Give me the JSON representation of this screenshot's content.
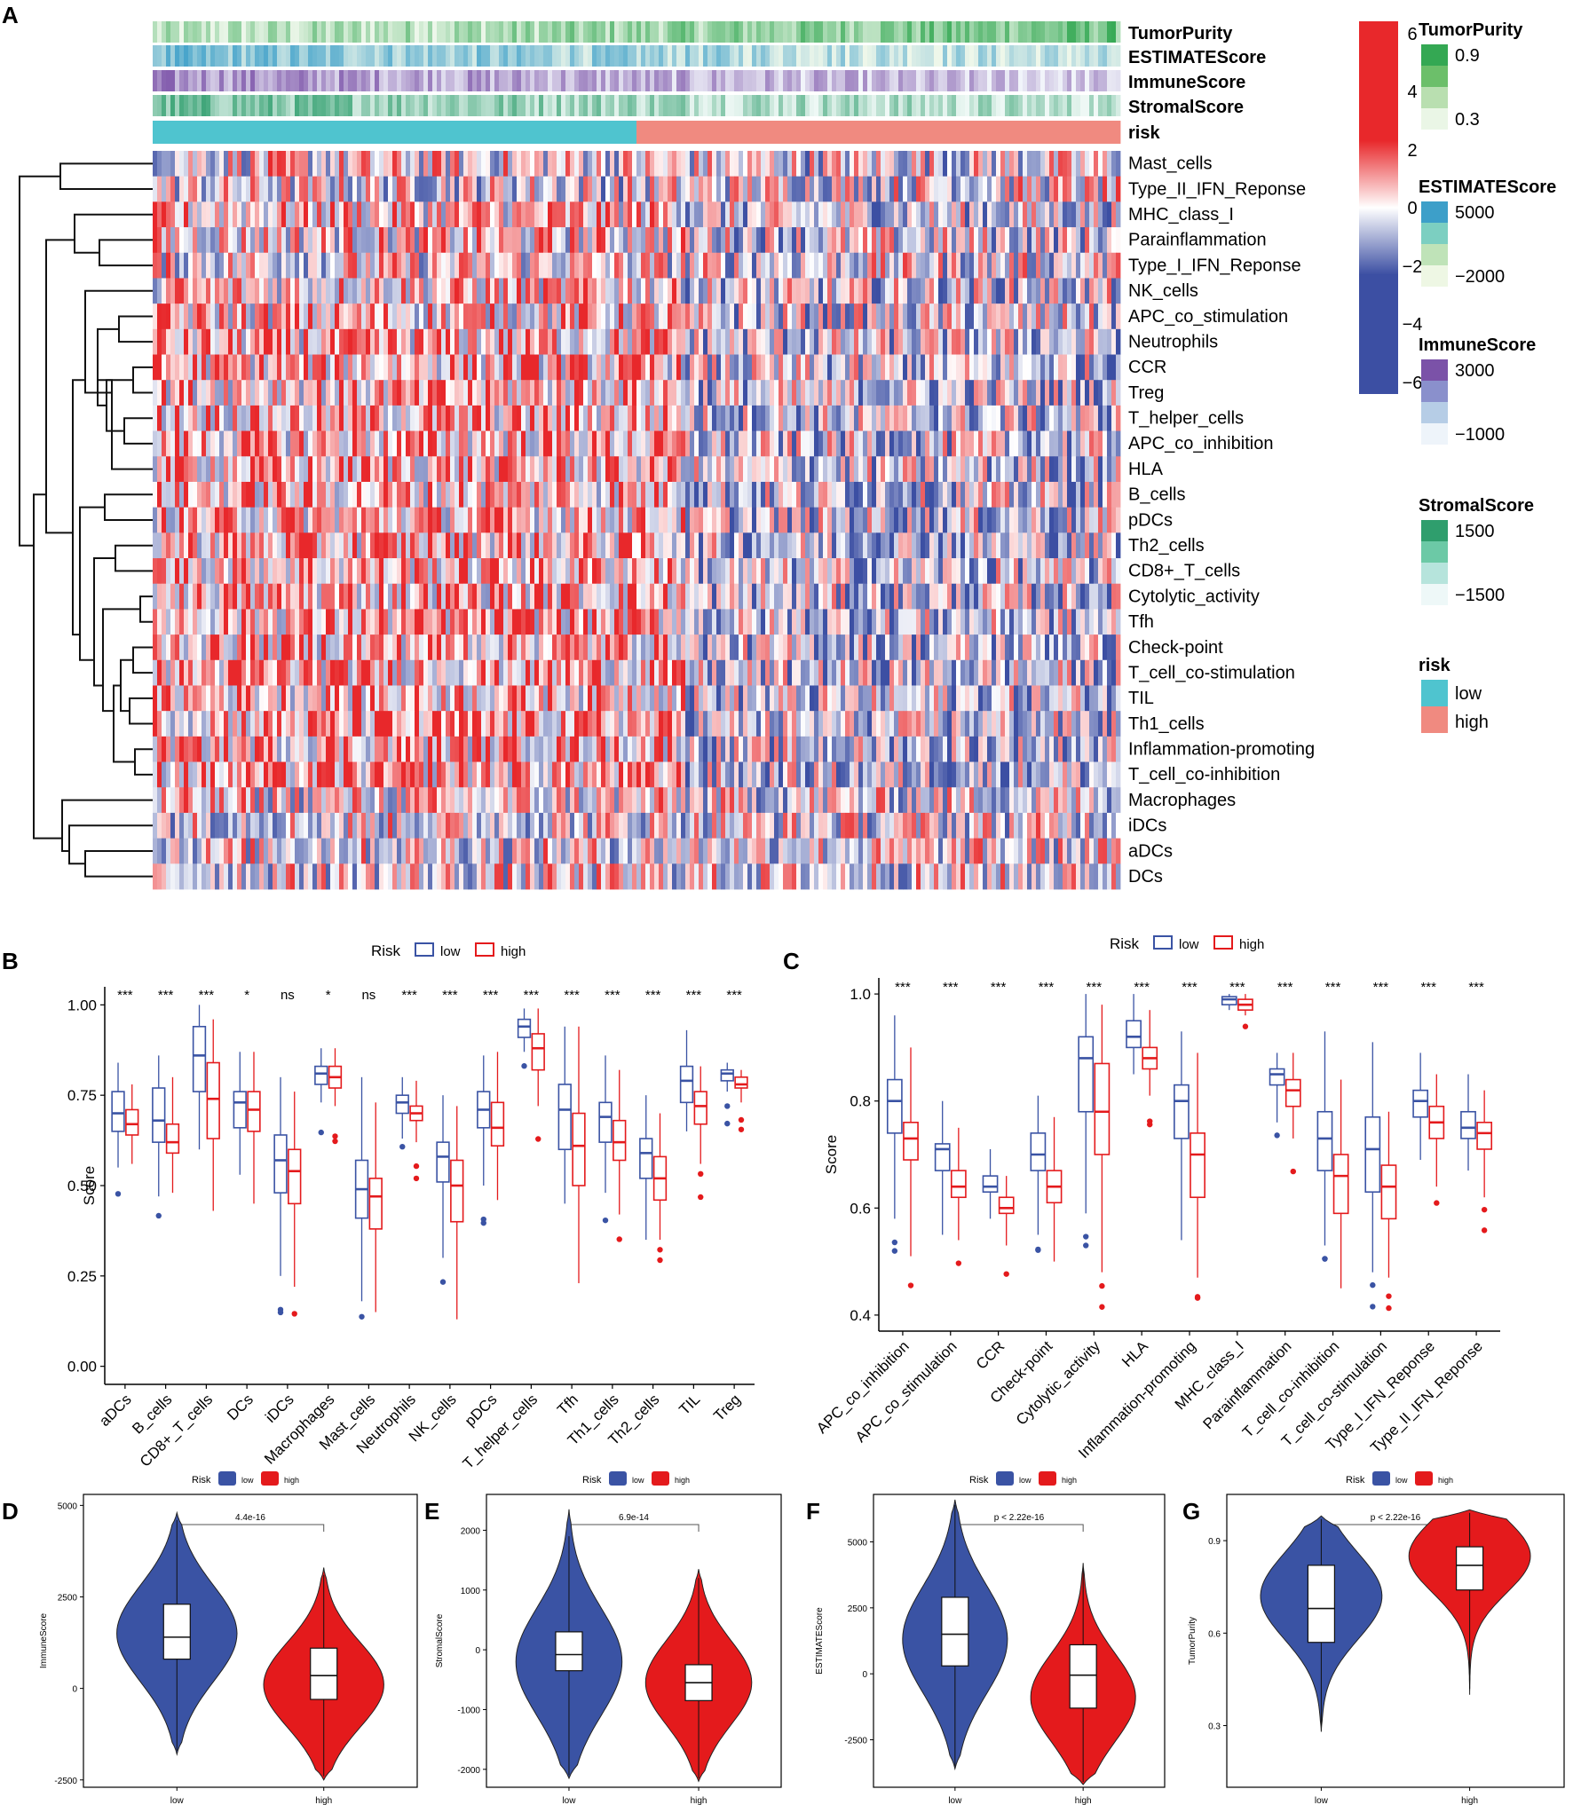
{
  "colors": {
    "low_blue": "#3a53a4",
    "high_red": "#e41a1c",
    "teal": "#4fc4cf",
    "salmon": "#f08a80",
    "heat_high": "#e8282b",
    "heat_low": "#3c4fa3"
  },
  "panels": {
    "A": "A",
    "B": "B",
    "C": "C",
    "D": "D",
    "E": "E",
    "F": "F",
    "G": "G"
  },
  "heatmap": {
    "annotation_rows": [
      "TumorPurity",
      "ESTIMATEScore",
      "ImmuneScore",
      "StromalScore",
      "risk"
    ],
    "rows": [
      "Mast_cells",
      "Type_II_IFN_Reponse",
      "MHC_class_I",
      "Parainflammation",
      "Type_I_IFN_Reponse",
      "NK_cells",
      "APC_co_stimulation",
      "Neutrophils",
      "CCR",
      "Treg",
      "T_helper_cells",
      "APC_co_inhibition",
      "HLA",
      "B_cells",
      "pDCs",
      "Th2_cells",
      "CD8+_T_cells",
      "Cytolytic_activity",
      "Tfh",
      "Check-point",
      "T_cell_co-stimulation",
      "TIL",
      "Th1_cells",
      "Inflammation-promoting",
      "T_cell_co-inhibition",
      "Macrophages",
      "iDCs",
      "aDCs",
      "DCs"
    ],
    "color_scale_ticks": [
      "6",
      "4",
      "2",
      "0",
      "−2",
      "−4",
      "−6"
    ],
    "legends": [
      {
        "title": "TumorPurity",
        "labels": [
          "0.9",
          "0.3"
        ]
      },
      {
        "title": "ESTIMATEScore",
        "labels": [
          "5000",
          "−2000"
        ]
      },
      {
        "title": "ImmuneScore",
        "labels": [
          "3000",
          "−1000"
        ]
      },
      {
        "title": "StromalScore",
        "labels": [
          "1500",
          "−1500"
        ]
      },
      {
        "title": "risk",
        "labels": [
          "low",
          "high"
        ]
      }
    ]
  },
  "chart_data": [
    {
      "panel": "B",
      "type": "box",
      "legend_title": "Risk",
      "legend_labels": [
        "low",
        "high"
      ],
      "ylabel": "Score",
      "ylim": [
        -0.05,
        1.05
      ],
      "y_ticks": [
        "0.00",
        "0.25",
        "0.50",
        "0.75",
        "1.00"
      ],
      "categories": [
        "aDCs",
        "B_cells",
        "CD8+_T_cells",
        "DCs",
        "iDCs",
        "Macrophages",
        "Mast_cells",
        "Neutrophils",
        "NK_cells",
        "pDCs",
        "T_helper_cells",
        "Tfh",
        "Th1_cells",
        "Th2_cells",
        "TIL",
        "Treg"
      ],
      "significance": [
        "***",
        "***",
        "***",
        "*",
        "ns",
        "*",
        "ns",
        "***",
        "***",
        "***",
        "***",
        "***",
        "***",
        "***",
        "***",
        "***"
      ],
      "series": [
        {
          "name": "low",
          "boxes": [
            [
              0.55,
              0.65,
              0.7,
              0.76,
              0.84
            ],
            [
              0.47,
              0.62,
              0.68,
              0.77,
              0.86
            ],
            [
              0.6,
              0.76,
              0.86,
              0.94,
              1.0
            ],
            [
              0.53,
              0.66,
              0.73,
              0.76,
              0.87
            ],
            [
              0.25,
              0.48,
              0.57,
              0.64,
              0.8
            ],
            [
              0.73,
              0.78,
              0.81,
              0.83,
              0.88
            ],
            [
              0.18,
              0.41,
              0.49,
              0.57,
              0.8
            ],
            [
              0.63,
              0.7,
              0.73,
              0.75,
              0.8
            ],
            [
              0.3,
              0.51,
              0.58,
              0.62,
              0.75
            ],
            [
              0.5,
              0.66,
              0.71,
              0.76,
              0.86
            ],
            [
              0.87,
              0.91,
              0.94,
              0.96,
              0.99
            ],
            [
              0.45,
              0.6,
              0.71,
              0.78,
              0.94
            ],
            [
              0.48,
              0.62,
              0.69,
              0.73,
              0.86
            ],
            [
              0.35,
              0.52,
              0.59,
              0.63,
              0.75
            ],
            [
              0.65,
              0.73,
              0.79,
              0.83,
              0.93
            ],
            [
              0.76,
              0.79,
              0.81,
              0.82,
              0.84
            ]
          ]
        },
        {
          "name": "high",
          "boxes": [
            [
              0.56,
              0.64,
              0.67,
              0.71,
              0.78
            ],
            [
              0.48,
              0.59,
              0.62,
              0.67,
              0.8
            ],
            [
              0.43,
              0.63,
              0.74,
              0.84,
              0.96
            ],
            [
              0.45,
              0.65,
              0.71,
              0.76,
              0.87
            ],
            [
              0.22,
              0.45,
              0.54,
              0.6,
              0.76
            ],
            [
              0.72,
              0.77,
              0.8,
              0.83,
              0.88
            ],
            [
              0.15,
              0.38,
              0.47,
              0.52,
              0.73
            ],
            [
              0.62,
              0.68,
              0.7,
              0.72,
              0.79
            ],
            [
              0.13,
              0.4,
              0.5,
              0.57,
              0.72
            ],
            [
              0.46,
              0.61,
              0.66,
              0.73,
              0.87
            ],
            [
              0.72,
              0.82,
              0.88,
              0.92,
              0.99
            ],
            [
              0.23,
              0.5,
              0.61,
              0.7,
              0.94
            ],
            [
              0.42,
              0.57,
              0.62,
              0.68,
              0.82
            ],
            [
              0.35,
              0.46,
              0.52,
              0.58,
              0.7
            ],
            [
              0.56,
              0.67,
              0.72,
              0.76,
              0.83
            ],
            [
              0.73,
              0.77,
              0.78,
              0.8,
              0.82
            ]
          ]
        }
      ]
    },
    {
      "panel": "C",
      "type": "box",
      "legend_title": "Risk",
      "legend_labels": [
        "low",
        "high"
      ],
      "ylabel": "Score",
      "ylim": [
        0.37,
        1.03
      ],
      "y_ticks": [
        "0.4",
        "0.6",
        "0.8",
        "1.0"
      ],
      "categories": [
        "APC_co_inhibition",
        "APC_co_stimulation",
        "CCR",
        "Check-point",
        "Cytolytic_activity",
        "HLA",
        "Inflammation-promoting",
        "MHC_class_I",
        "Parainflammation",
        "T_cell_co-inhibition",
        "T_cell_co-stimulation",
        "Type_I_IFN_Reponse",
        "Type_II_IFN_Reponse"
      ],
      "significance": [
        "***",
        "***",
        "***",
        "***",
        "***",
        "***",
        "***",
        "***",
        "***",
        "***",
        "***",
        "***",
        "***"
      ],
      "series": [
        {
          "name": "low",
          "boxes": [
            [
              0.58,
              0.74,
              0.8,
              0.84,
              0.96
            ],
            [
              0.55,
              0.67,
              0.71,
              0.72,
              0.8
            ],
            [
              0.58,
              0.63,
              0.64,
              0.66,
              0.71
            ],
            [
              0.55,
              0.67,
              0.7,
              0.74,
              0.81
            ],
            [
              0.59,
              0.78,
              0.88,
              0.92,
              1.0
            ],
            [
              0.85,
              0.9,
              0.92,
              0.95,
              1.0
            ],
            [
              0.54,
              0.73,
              0.8,
              0.83,
              0.93
            ],
            [
              0.97,
              0.98,
              0.99,
              0.995,
              1.0
            ],
            [
              0.76,
              0.83,
              0.85,
              0.86,
              0.89
            ],
            [
              0.53,
              0.67,
              0.73,
              0.78,
              0.93
            ],
            [
              0.48,
              0.63,
              0.71,
              0.77,
              0.91
            ],
            [
              0.69,
              0.77,
              0.8,
              0.82,
              0.89
            ],
            [
              0.67,
              0.73,
              0.75,
              0.78,
              0.85
            ]
          ]
        },
        {
          "name": "high",
          "boxes": [
            [
              0.51,
              0.69,
              0.73,
              0.76,
              0.9
            ],
            [
              0.54,
              0.62,
              0.64,
              0.67,
              0.75
            ],
            [
              0.53,
              0.59,
              0.6,
              0.62,
              0.66
            ],
            [
              0.5,
              0.61,
              0.64,
              0.67,
              0.77
            ],
            [
              0.48,
              0.7,
              0.78,
              0.87,
              0.98
            ],
            [
              0.81,
              0.86,
              0.88,
              0.9,
              0.97
            ],
            [
              0.47,
              0.62,
              0.7,
              0.74,
              0.89
            ],
            [
              0.96,
              0.97,
              0.98,
              0.99,
              1.0
            ],
            [
              0.73,
              0.79,
              0.82,
              0.84,
              0.89
            ],
            [
              0.45,
              0.59,
              0.66,
              0.7,
              0.84
            ],
            [
              0.47,
              0.58,
              0.64,
              0.68,
              0.78
            ],
            [
              0.64,
              0.73,
              0.76,
              0.79,
              0.85
            ],
            [
              0.62,
              0.71,
              0.74,
              0.76,
              0.82
            ]
          ]
        }
      ]
    },
    {
      "panel": "D",
      "type": "violin",
      "ylabel": "ImmuneScore",
      "categories": [
        "low",
        "high"
      ],
      "legend_title": "Risk",
      "legend_labels": [
        "low",
        "high"
      ],
      "pvalue": "4.4e-16",
      "ylim": [
        -2700,
        5300
      ],
      "y_ticks": [
        {
          "v": 5000,
          "t": "5000"
        },
        {
          "v": 2500,
          "t": "2500"
        },
        {
          "v": 0,
          "t": "0"
        },
        {
          "v": -2500,
          "t": "-2500"
        }
      ],
      "violins": [
        {
          "min": -1800,
          "max": 4800,
          "peak": 1500,
          "wmax": 1.0
        },
        {
          "min": -2500,
          "max": 3300,
          "peak": 100,
          "wmax": 1.0
        }
      ],
      "boxes": [
        [
          -1700,
          800,
          1400,
          2300,
          4600
        ],
        [
          -2400,
          -300,
          350,
          1100,
          3100
        ]
      ]
    },
    {
      "panel": "E",
      "type": "violin",
      "ylabel": "StromalScore",
      "categories": [
        "low",
        "high"
      ],
      "legend_title": "Risk",
      "legend_labels": [
        "low",
        "high"
      ],
      "pvalue": "6.9e-14",
      "ylim": [
        -2300,
        2600
      ],
      "y_ticks": [
        {
          "v": 2000,
          "t": "2000"
        },
        {
          "v": 1000,
          "t": "1000"
        },
        {
          "v": 0,
          "t": "0"
        },
        {
          "v": -1000,
          "t": "-1000"
        },
        {
          "v": -2000,
          "t": "-2000"
        }
      ],
      "violins": [
        {
          "min": -2150,
          "max": 2350,
          "peak": -200,
          "wmax": 1.0
        },
        {
          "min": -2200,
          "max": 1350,
          "peak": -550,
          "wmax": 1.0
        }
      ],
      "boxes": [
        [
          -2100,
          -350,
          -80,
          300,
          1900
        ],
        [
          -2150,
          -850,
          -550,
          -250,
          1200
        ]
      ]
    },
    {
      "panel": "F",
      "type": "violin",
      "ylabel": "ESTIMATEScore",
      "categories": [
        "low",
        "high"
      ],
      "legend_title": "Risk",
      "legend_labels": [
        "low",
        "high"
      ],
      "pvalue": "p < 2.22e-16",
      "ylim": [
        -4300,
        6800
      ],
      "y_ticks": [
        {
          "v": 5000,
          "t": "5000"
        },
        {
          "v": 2500,
          "t": "2500"
        },
        {
          "v": 0,
          "t": "0"
        },
        {
          "v": -2500,
          "t": "-2500"
        }
      ],
      "violins": [
        {
          "min": -3600,
          "max": 6600,
          "peak": 1300,
          "wmax": 1.0
        },
        {
          "min": -4200,
          "max": 4200,
          "peak": -900,
          "wmax": 1.0
        }
      ],
      "boxes": [
        [
          -3500,
          300,
          1500,
          2900,
          6400
        ],
        [
          -4100,
          -1300,
          -50,
          1100,
          4000
        ]
      ]
    },
    {
      "panel": "G",
      "type": "violin",
      "ylabel": "TumorPurity",
      "categories": [
        "low",
        "high"
      ],
      "legend_title": "Risk",
      "legend_labels": [
        "low",
        "high"
      ],
      "pvalue": "p < 2.22e-16",
      "ylim": [
        0.1,
        1.05
      ],
      "y_ticks": [
        {
          "v": 0.9,
          "t": "0.9"
        },
        {
          "v": 0.6,
          "t": "0.6"
        },
        {
          "v": 0.3,
          "t": "0.3"
        }
      ],
      "violins": [
        {
          "min": 0.28,
          "max": 0.98,
          "peak": 0.72,
          "wmax": 1.0
        },
        {
          "min": 0.4,
          "max": 1.0,
          "peak": 0.85,
          "wmax": 1.0
        }
      ],
      "boxes": [
        [
          0.3,
          0.57,
          0.68,
          0.82,
          0.97
        ],
        [
          0.42,
          0.74,
          0.82,
          0.88,
          0.99
        ]
      ]
    }
  ]
}
